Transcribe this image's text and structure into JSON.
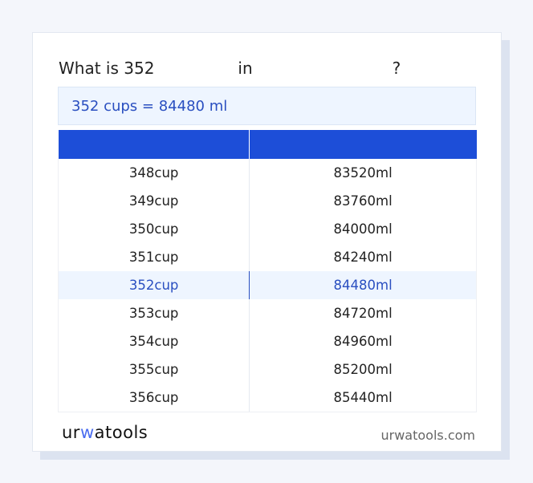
{
  "title": {
    "prefix": "What is 352",
    "middle": "in",
    "suffix": "?"
  },
  "result": "352 cups = 84480 ml",
  "table": {
    "headers": [
      "",
      ""
    ],
    "rows": [
      {
        "from": "348cup",
        "to": "83520ml"
      },
      {
        "from": "349cup",
        "to": "83760ml"
      },
      {
        "from": "350cup",
        "to": "84000ml"
      },
      {
        "from": "351cup",
        "to": "84240ml"
      },
      {
        "from": "352cup",
        "to": "84480ml",
        "highlight": true
      },
      {
        "from": "353cup",
        "to": "84720ml"
      },
      {
        "from": "354cup",
        "to": "84960ml"
      },
      {
        "from": "355cup",
        "to": "85200ml"
      },
      {
        "from": "356cup",
        "to": "85440ml"
      }
    ]
  },
  "footer": {
    "logo": "urwatools",
    "site": "urwatools.com"
  },
  "colors": {
    "accent": "#1d4ed8",
    "highlight_bg": "#eef5ff"
  }
}
